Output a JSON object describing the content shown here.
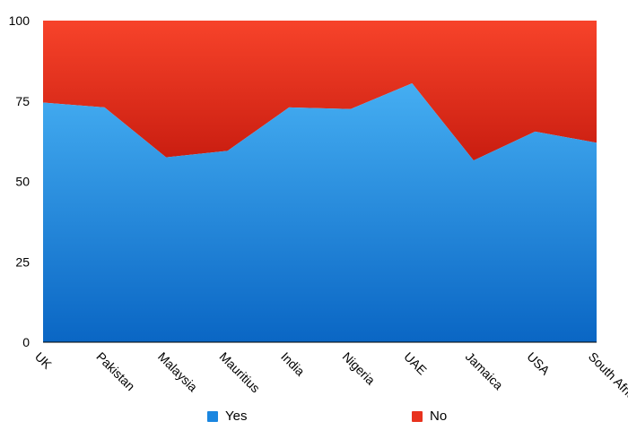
{
  "chart_data": {
    "type": "area",
    "stacked": true,
    "percent": true,
    "categories": [
      "UK",
      "Pakistan",
      "Malaysia",
      "Mauritius",
      "India",
      "Nigeria",
      "UAE",
      "Jamaica",
      "USA",
      "South Africa"
    ],
    "series": [
      {
        "name": "Yes",
        "color": "#1a86e0",
        "values": [
          74.5,
          73,
          57.5,
          59.5,
          73,
          72.5,
          80.5,
          56.5,
          65.5,
          62
        ]
      },
      {
        "name": "No",
        "color": "#e8321e",
        "values": [
          25.5,
          27,
          42.5,
          40.5,
          27,
          27.5,
          19.5,
          43.5,
          34.5,
          38
        ]
      }
    ],
    "y_ticks": [
      "0",
      "25",
      "50",
      "75",
      "100"
    ],
    "ylim": [
      0,
      100
    ],
    "grid": false,
    "legend_position": "bottom"
  }
}
